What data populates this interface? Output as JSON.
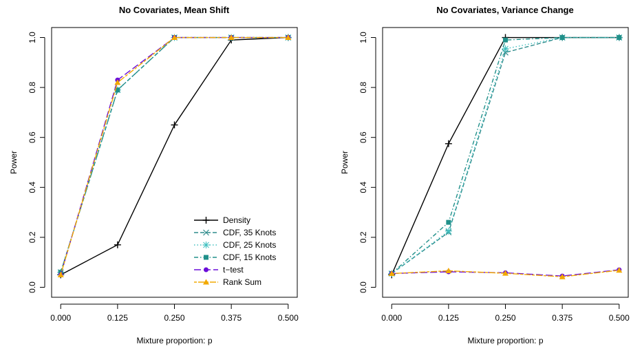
{
  "chart_data": [
    {
      "type": "line",
      "title": "No Covariates, Mean Shift",
      "xlabel": "Mixture proportion: p",
      "ylabel": "Power",
      "x": [
        0.0,
        0.125,
        0.25,
        0.375,
        0.5
      ],
      "x_tick_labels": [
        "0.000",
        "0.125",
        "0.250",
        "0.375",
        "0.500"
      ],
      "y_ticks": [
        0.0,
        0.2,
        0.4,
        0.6,
        0.8,
        1.0
      ],
      "y_tick_labels": [
        "0.0",
        "0.2",
        "0.4",
        "0.6",
        "0.8",
        "1.0"
      ],
      "xlim": [
        0.0,
        0.5
      ],
      "ylim": [
        0.0,
        1.0
      ],
      "grid": false,
      "legend_position": "bottom-right",
      "series": [
        {
          "name": "Density",
          "values": [
            0.05,
            0.17,
            0.65,
            0.99,
            1.0
          ],
          "color": "#000000",
          "marker": "plus",
          "dash": "solid"
        },
        {
          "name": "CDF, 35 Knots",
          "values": [
            0.06,
            0.79,
            1.0,
            1.0,
            1.0
          ],
          "color": "#2e8b8b",
          "marker": "x",
          "dash": "dash"
        },
        {
          "name": "CDF, 25 Knots",
          "values": [
            0.06,
            0.79,
            1.0,
            1.0,
            1.0
          ],
          "color": "#40c0c0",
          "marker": "asterisk",
          "dash": "dot"
        },
        {
          "name": "CDF, 15 Knots",
          "values": [
            0.06,
            0.79,
            1.0,
            1.0,
            1.0
          ],
          "color": "#20908a",
          "marker": "square",
          "dash": "dashdot"
        },
        {
          "name": "t−test",
          "values": [
            0.05,
            0.83,
            1.0,
            1.0,
            1.0
          ],
          "color": "#6a0dd9",
          "marker": "circle",
          "dash": "longdash"
        },
        {
          "name": "Rank Sum",
          "values": [
            0.05,
            0.82,
            1.0,
            1.0,
            1.0
          ],
          "color": "#f2a900",
          "marker": "triangle",
          "dash": "twodash"
        }
      ]
    },
    {
      "type": "line",
      "title": "No Covariates, Variance Change",
      "xlabel": "Mixture proportion: p",
      "ylabel": "Power",
      "x": [
        0.0,
        0.125,
        0.25,
        0.375,
        0.5
      ],
      "x_tick_labels": [
        "0.000",
        "0.125",
        "0.250",
        "0.375",
        "0.500"
      ],
      "y_ticks": [
        0.0,
        0.2,
        0.4,
        0.6,
        0.8,
        1.0
      ],
      "y_tick_labels": [
        "0.0",
        "0.2",
        "0.4",
        "0.6",
        "0.8",
        "1.0"
      ],
      "xlim": [
        0.0,
        0.5
      ],
      "ylim": [
        0.0,
        1.0
      ],
      "grid": false,
      "series": [
        {
          "name": "Density",
          "values": [
            0.05,
            0.575,
            1.0,
            1.0,
            1.0
          ],
          "color": "#000000",
          "marker": "plus",
          "dash": "solid"
        },
        {
          "name": "CDF, 35 Knots",
          "values": [
            0.055,
            0.22,
            0.94,
            1.0,
            1.0
          ],
          "color": "#2e8b8b",
          "marker": "x",
          "dash": "dash"
        },
        {
          "name": "CDF, 25 Knots",
          "values": [
            0.055,
            0.225,
            0.955,
            1.0,
            1.0
          ],
          "color": "#40c0c0",
          "marker": "asterisk",
          "dash": "dot"
        },
        {
          "name": "CDF, 15 Knots",
          "values": [
            0.055,
            0.26,
            0.99,
            1.0,
            1.0
          ],
          "color": "#20908a",
          "marker": "square",
          "dash": "dashdot"
        },
        {
          "name": "t−test",
          "values": [
            0.055,
            0.062,
            0.058,
            0.045,
            0.07
          ],
          "color": "#6a0dd9",
          "marker": "circle",
          "dash": "longdash"
        },
        {
          "name": "Rank Sum",
          "values": [
            0.055,
            0.066,
            0.056,
            0.042,
            0.068
          ],
          "color": "#f2a900",
          "marker": "triangle",
          "dash": "twodash"
        }
      ]
    }
  ]
}
